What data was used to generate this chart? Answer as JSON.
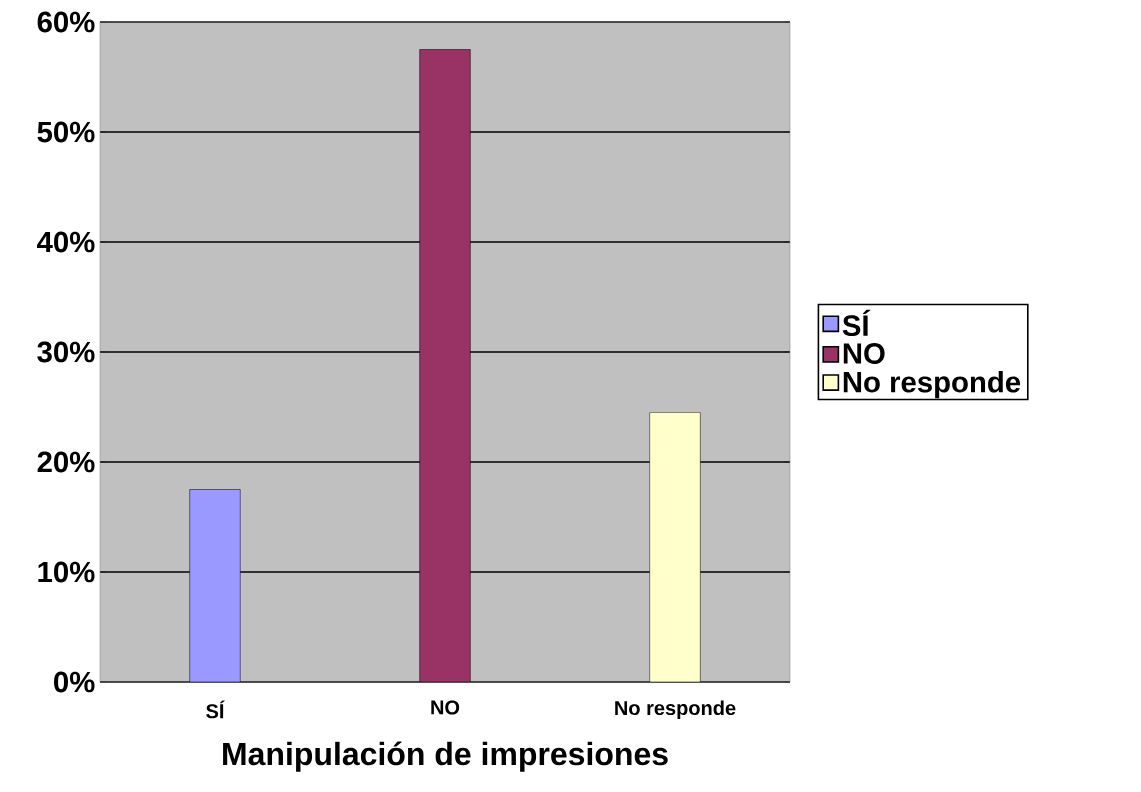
{
  "chart_data": {
    "type": "bar",
    "xlabel": "Manipulación de impresiones",
    "categories": [
      "SÍ",
      "NO",
      "No responde"
    ],
    "series": [
      {
        "name": "SÍ",
        "color": "#9999ff",
        "values": [
          17.5,
          null,
          null
        ]
      },
      {
        "name": "NO",
        "color": "#993366",
        "values": [
          null,
          57.5,
          null
        ]
      },
      {
        "name": "No responde",
        "color": "#ffffcc",
        "values": [
          null,
          null,
          24.5
        ]
      }
    ],
    "ylim": [
      0,
      60
    ],
    "yticks": [
      {
        "value": 0,
        "label": "0%"
      },
      {
        "value": 10,
        "label": "10%"
      },
      {
        "value": 20,
        "label": "20%"
      },
      {
        "value": 30,
        "label": "30%"
      },
      {
        "value": 40,
        "label": "40%"
      },
      {
        "value": 50,
        "label": "50%"
      },
      {
        "value": 60,
        "label": "60%"
      }
    ],
    "grid": "y",
    "legend": "right"
  }
}
